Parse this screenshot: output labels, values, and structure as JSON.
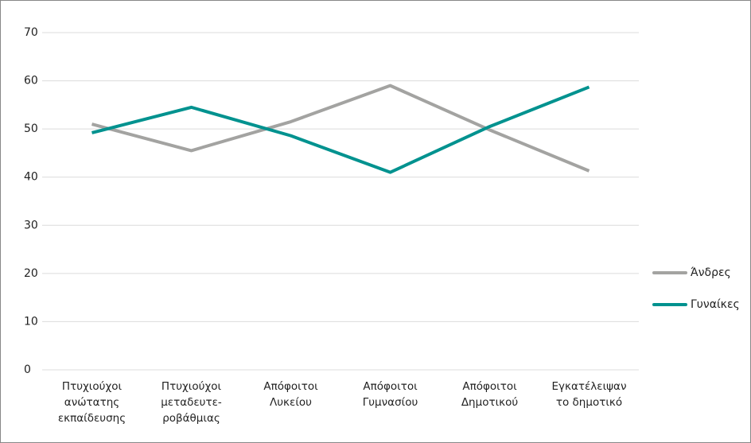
{
  "chart_data": {
    "type": "line",
    "categories": [
      "Πτυχιούχοι ανώτατης εκπαίδευσης",
      "Πτυχιούχοι μεταδευτε-ροβάθμιας",
      "Απόφοιτοι Λυκείου",
      "Απόφοιτοι Γυμνασίου",
      "Απόφοιτοι Δημοτικού",
      "Εγκατέλειψαν το δημοτικό"
    ],
    "series": [
      {
        "name": "Άνδρες",
        "color": "#a3a3a1",
        "values": [
          51,
          45.5,
          51.5,
          59,
          49.8,
          41.3
        ]
      },
      {
        "name": "Γυναίκες",
        "color": "#00928f",
        "values": [
          49.2,
          54.5,
          48.6,
          41,
          50.5,
          58.7
        ]
      }
    ],
    "ylim": [
      0,
      70
    ],
    "yticks": [
      0,
      10,
      20,
      30,
      40,
      50,
      60,
      70
    ],
    "grid": true,
    "legend": "right"
  }
}
